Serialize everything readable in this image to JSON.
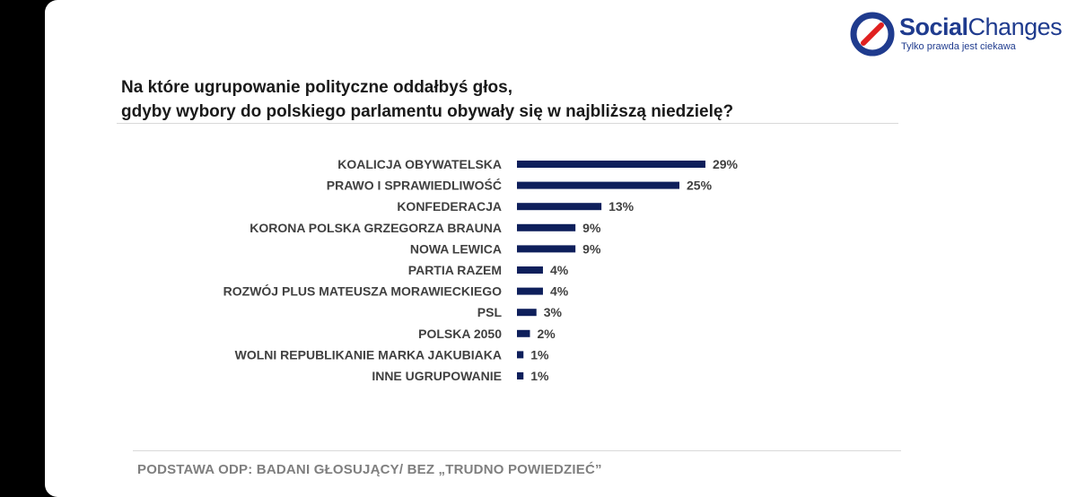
{
  "brand": {
    "name_bold": "Social",
    "name_light": "Changes",
    "tagline": "Tylko prawda jest ciekawa",
    "color": "#1f3b8e",
    "accent": "#e02020"
  },
  "question": {
    "line1": "Na które ugrupowanie polityczne oddałbyś głos,",
    "line2": "gdyby wybory do polskiego parlamentu obywały się w najbliższą niedzielę?"
  },
  "footer": "PODSTAWA ODP: BADANI GŁOSUJĄCY/ BEZ „TRUDNO POWIEDZIEĆ”",
  "chart_data": {
    "type": "bar",
    "orientation": "horizontal",
    "bar_color": "#0e1f5b",
    "categories": [
      "KOALICJA OBYWATELSKA",
      "PRAWO I SPRAWIEDLIWOŚĆ",
      "KONFEDERACJA",
      "KORONA POLSKA GRZEGORZA BRAUNA",
      "NOWA LEWICA",
      "PARTIA RAZEM",
      "ROZWÓJ PLUS MATEUSZA MORAWIECKIEGO",
      "PSL",
      "POLSKA 2050",
      "WOLNI REPUBLIKANIE MARKA JAKUBIAKA",
      "INNE UGRUPOWANIE"
    ],
    "values": [
      29,
      25,
      13,
      9,
      9,
      4,
      4,
      3,
      2,
      1,
      1
    ],
    "value_labels": [
      "29%",
      "25%",
      "13%",
      "9%",
      "9%",
      "4%",
      "4%",
      "3%",
      "2%",
      "1%",
      "1%"
    ],
    "unit": "%",
    "grid": false
  }
}
